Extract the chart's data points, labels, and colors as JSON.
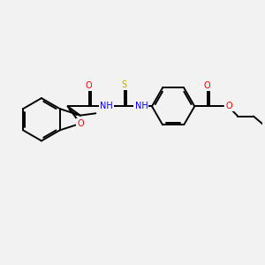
{
  "background_color": "#f2f2f2",
  "bond_color": "#000000",
  "atom_colors": {
    "O": "#ff0000",
    "N": "#0000ff",
    "S": "#ccaa00",
    "C": "#000000"
  },
  "figsize": [
    3.0,
    3.0
  ],
  "dpi": 100,
  "xlim": [
    0,
    10
  ],
  "ylim": [
    0,
    10
  ]
}
